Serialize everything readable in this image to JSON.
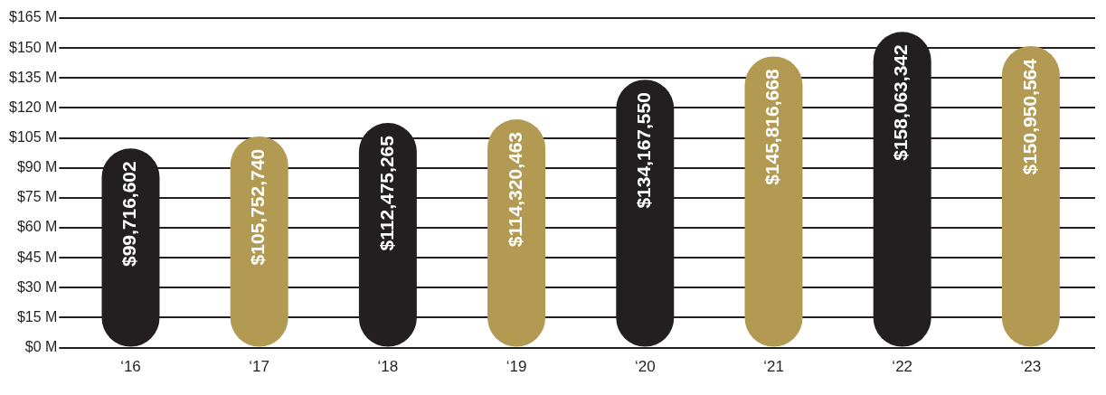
{
  "chart_data": {
    "type": "bar",
    "categories": [
      "‘16",
      "‘17",
      "‘18",
      "‘19",
      "‘20",
      "‘21",
      "‘22",
      "‘23"
    ],
    "values": [
      99716602,
      105752740,
      112475265,
      114320463,
      134167550,
      145816668,
      158063342,
      150950564
    ],
    "colors": [
      "#231f20",
      "#b39a53",
      "#231f20",
      "#b39a53",
      "#231f20",
      "#b39a53",
      "#231f20",
      "#b39a53"
    ],
    "value_labels": [
      "$99,716,602",
      "$105,752,740",
      "$112,475,265",
      "$114,320,463",
      "$134,167,550",
      "$145,816,668",
      "$158,063,342",
      "$150,950,564"
    ],
    "ylim": [
      0,
      165000000
    ],
    "yticks": [
      {
        "value": 0,
        "label": "$0 M"
      },
      {
        "value": 15000000,
        "label": "$15 M"
      },
      {
        "value": 30000000,
        "label": "$30 M"
      },
      {
        "value": 45000000,
        "label": "$45 M"
      },
      {
        "value": 60000000,
        "label": "$60 M"
      },
      {
        "value": 75000000,
        "label": "$75 M"
      },
      {
        "value": 90000000,
        "label": "$90 M"
      },
      {
        "value": 105000000,
        "label": "$105 M"
      },
      {
        "value": 120000000,
        "label": "$120 M"
      },
      {
        "value": 135000000,
        "label": "$135 M"
      },
      {
        "value": 150000000,
        "label": "$150 M"
      },
      {
        "value": 165000000,
        "label": "$165 M"
      }
    ],
    "grid": "y",
    "legend": false
  }
}
